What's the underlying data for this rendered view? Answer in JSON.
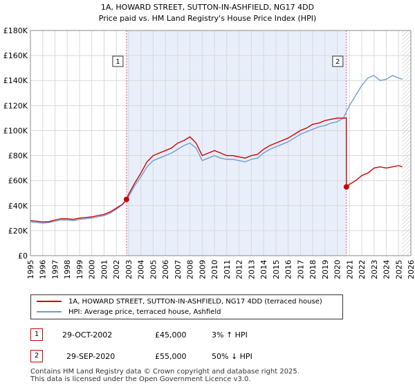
{
  "chart_data": {
    "type": "line",
    "title": "1A, HOWARD STREET, SUTTON-IN-ASHFIELD, NG17 4DD",
    "subtitle": "Price paid vs. HM Land Registry's House Price Index (HPI)",
    "xlabel": "",
    "ylabel": "",
    "xlim": [
      1995,
      2026
    ],
    "ylim": [
      0,
      180000
    ],
    "y_ticks": [
      0,
      20000,
      40000,
      60000,
      80000,
      100000,
      120000,
      140000,
      160000,
      180000
    ],
    "y_tick_labels": [
      "£0",
      "£20K",
      "£40K",
      "£60K",
      "£80K",
      "£100K",
      "£120K",
      "£140K",
      "£160K",
      "£180K"
    ],
    "x_ticks": [
      1995,
      1996,
      1997,
      1998,
      1999,
      2000,
      2001,
      2002,
      2003,
      2004,
      2005,
      2006,
      2007,
      2008,
      2009,
      2010,
      2011,
      2012,
      2013,
      2014,
      2015,
      2016,
      2017,
      2018,
      2019,
      2020,
      2021,
      2022,
      2023,
      2024,
      2025,
      2026
    ],
    "x_tick_labels": [
      "1995",
      "1996",
      "1997",
      "1998",
      "1999",
      "2000",
      "2001",
      "2002",
      "2003",
      "2004",
      "2005",
      "2006",
      "2007",
      "2008",
      "2009",
      "2010",
      "2011",
      "2012",
      "2013",
      "2014",
      "2015",
      "2016",
      "2017",
      "2018",
      "2019",
      "2020",
      "2021",
      "2022",
      "2023",
      "2024",
      "2025",
      "2026"
    ],
    "grid": true,
    "shaded_span": [
      2002.83,
      2020.75
    ],
    "future_hatch_from": 2025.3,
    "series": [
      {
        "name": "1A, HOWARD STREET, SUTTON-IN-ASHFIELD, NG17 4DD (terraced house)",
        "color": "#cc0000",
        "x": [
          1995,
          1995.5,
          1996,
          1996.5,
          1997,
          1997.5,
          1998,
          1998.5,
          1999,
          1999.5,
          2000,
          2000.5,
          2001,
          2001.5,
          2002,
          2002.5,
          2002.83,
          2003,
          2003.5,
          2004,
          2004.5,
          2005,
          2005.5,
          2006,
          2006.5,
          2007,
          2007.5,
          2008,
          2008.5,
          2009,
          2009.5,
          2010,
          2010.5,
          2011,
          2011.5,
          2012,
          2012.5,
          2013,
          2013.5,
          2014,
          2014.5,
          2015,
          2015.5,
          2016,
          2016.5,
          2017,
          2017.5,
          2018,
          2018.5,
          2019,
          2019.5,
          2020,
          2020.5,
          2020.74,
          2020.75,
          2021,
          2021.5,
          2022,
          2022.5,
          2023,
          2023.5,
          2024,
          2024.5,
          2025,
          2025.3
        ],
        "values": [
          28000,
          27500,
          27000,
          27200,
          28500,
          29500,
          29500,
          29000,
          30000,
          30500,
          31000,
          32000,
          33000,
          35000,
          38000,
          41000,
          45000,
          49000,
          58000,
          66000,
          75000,
          80000,
          82000,
          84000,
          86000,
          90000,
          92000,
          95000,
          90000,
          80000,
          82000,
          84000,
          82000,
          80000,
          80000,
          79000,
          78000,
          80000,
          81000,
          85000,
          88000,
          90000,
          92000,
          94000,
          97000,
          100000,
          102000,
          105000,
          106000,
          108000,
          109000,
          110000,
          110000,
          110000,
          55000,
          57000,
          60000,
          64000,
          66000,
          70000,
          71000,
          70000,
          71000,
          72000,
          71000
        ]
      },
      {
        "name": "HPI: Average price, terraced house, Ashfield",
        "color": "#6f9bd6",
        "x": [
          1995,
          1995.5,
          1996,
          1996.5,
          1997,
          1997.5,
          1998,
          1998.5,
          1999,
          1999.5,
          2000,
          2000.5,
          2001,
          2001.5,
          2002,
          2002.5,
          2003,
          2003.5,
          2004,
          2004.5,
          2005,
          2005.5,
          2006,
          2006.5,
          2007,
          2007.5,
          2008,
          2008.5,
          2009,
          2009.5,
          2010,
          2010.5,
          2011,
          2011.5,
          2012,
          2012.5,
          2013,
          2013.5,
          2014,
          2014.5,
          2015,
          2015.5,
          2016,
          2016.5,
          2017,
          2017.5,
          2018,
          2018.5,
          2019,
          2019.5,
          2020,
          2020.5,
          2021,
          2021.5,
          2022,
          2022.5,
          2023,
          2023.5,
          2024,
          2024.5,
          2025,
          2025.3
        ],
        "values": [
          27000,
          26500,
          26000,
          26500,
          27500,
          28500,
          28500,
          28000,
          29000,
          29500,
          30000,
          31000,
          32000,
          34000,
          37000,
          41000,
          47000,
          56000,
          63000,
          71000,
          76000,
          78000,
          80000,
          82000,
          85000,
          88000,
          90000,
          86000,
          76000,
          78000,
          80000,
          78000,
          77000,
          77000,
          76000,
          75000,
          77000,
          78000,
          82000,
          85000,
          87000,
          89000,
          91000,
          94000,
          97000,
          99000,
          101000,
          103000,
          104000,
          106000,
          107000,
          110000,
          120000,
          128000,
          136000,
          142000,
          144000,
          140000,
          141000,
          144000,
          142000,
          141000
        ]
      }
    ],
    "annotations": [
      {
        "id": "1",
        "x": 2002.83,
        "price": 45000,
        "date": "29-OCT-2002",
        "price_label": "£45,000",
        "hpi_label": "3% ↑ HPI"
      },
      {
        "id": "2",
        "x": 2020.75,
        "price": 55000,
        "date": "29-SEP-2020",
        "price_label": "£55,000",
        "hpi_label": "50% ↓ HPI"
      }
    ]
  },
  "legend": {
    "red_label": "1A, HOWARD STREET, SUTTON-IN-ASHFIELD, NG17 4DD (terraced house)",
    "blue_label": "HPI: Average price, terraced house, Ashfield"
  },
  "footer": {
    "line1": "Contains HM Land Registry data © Crown copyright and database right 2025.",
    "line2": "This data is licensed under the Open Government Licence v3.0."
  }
}
